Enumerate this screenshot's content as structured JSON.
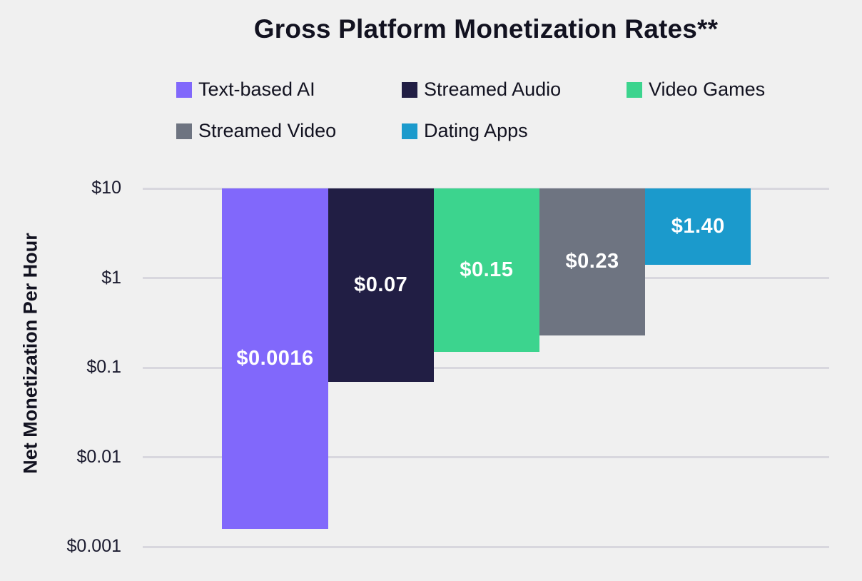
{
  "chart_data": {
    "type": "bar",
    "title": "Gross Platform Monetization Rates**",
    "xlabel": "",
    "ylabel": "Net Monetization Per Hour",
    "y_scale": "log",
    "ylim": [
      0.001,
      10
    ],
    "grid": true,
    "legend_position": "top",
    "bars_baseline": "top ($10), bars extend down to value",
    "yticks": {
      "values": [
        10,
        1,
        0.1,
        0.01,
        0.001
      ],
      "labels": [
        "$10",
        "$1",
        "$0.1",
        "$0.01",
        "$0.001"
      ]
    },
    "series": [
      {
        "name": "Text-based AI",
        "value": 0.0016,
        "label": "$0.0016",
        "color": "#8168fb"
      },
      {
        "name": "Streamed Audio",
        "value": 0.07,
        "label": "$0.07",
        "color": "#211e44"
      },
      {
        "name": "Video Games",
        "value": 0.15,
        "label": "$0.15",
        "color": "#3cd48e"
      },
      {
        "name": "Streamed Video",
        "value": 0.23,
        "label": "$0.23",
        "color": "#6e7481"
      },
      {
        "name": "Dating Apps",
        "value": 1.4,
        "label": "$1.40",
        "color": "#1b9acc"
      }
    ]
  },
  "colors": {
    "background": "#f0f0f0",
    "gridline": "#d8d7de",
    "text": "#121220",
    "bar_label_text": "#ffffff"
  }
}
